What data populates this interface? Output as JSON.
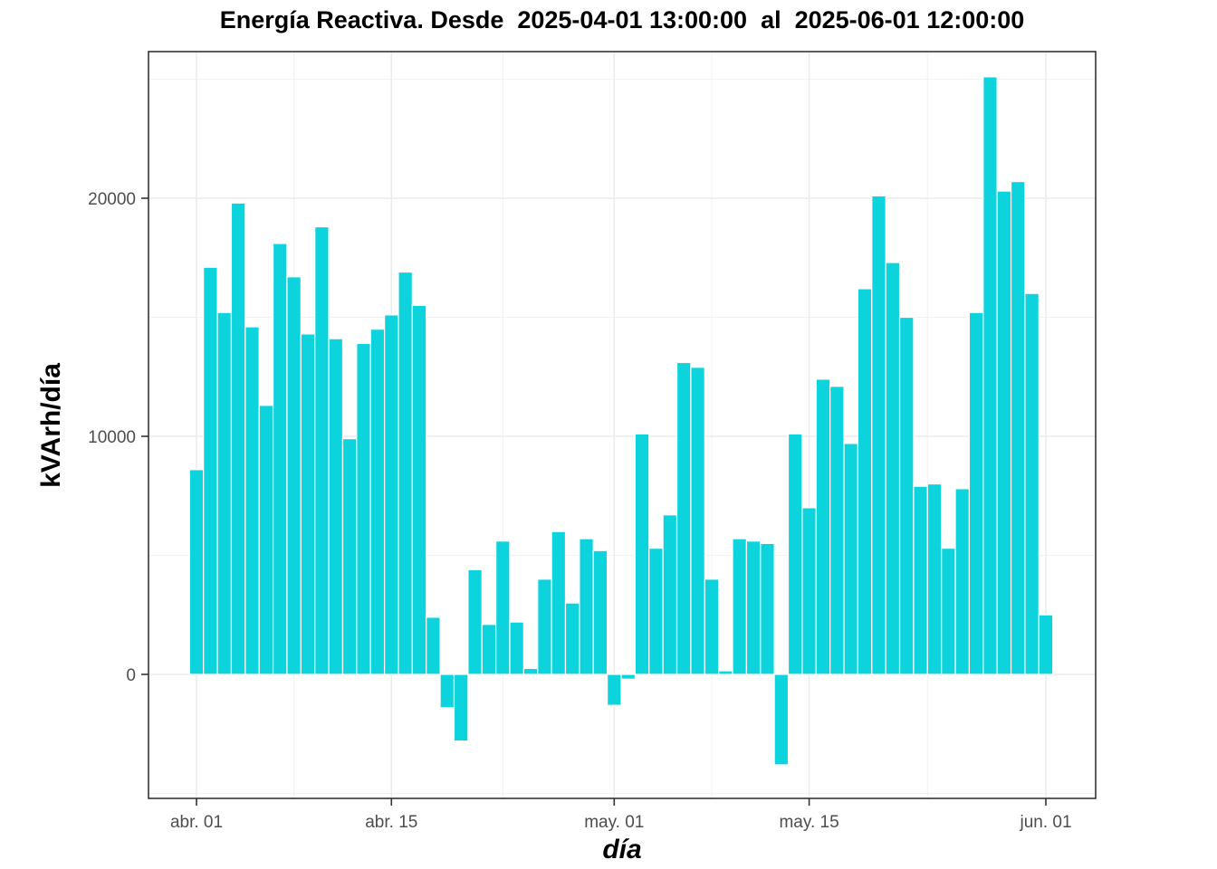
{
  "chart_data": {
    "type": "bar",
    "title": "Energía Reactiva. Desde  2025-04-01 13:00:00  al  2025-06-01 12:00:00",
    "xlabel": "día",
    "ylabel": "kVArh/día",
    "legend": "none",
    "grid": true,
    "colors": {
      "bar_fill": "#0DD3DD",
      "bar_stroke": "#ffffff",
      "grid_major": "#ebebeb",
      "grid_minor": "#f2f2f2",
      "panel_border": "#333333",
      "tick_mark": "#333333",
      "tick_label": "#4d4d4d",
      "background": "#ffffff"
    },
    "y_axis": {
      "ticks": [
        0,
        10000,
        20000
      ],
      "tick_labels": [
        "0",
        "10000",
        "20000"
      ],
      "minor_ticks": [
        -5000,
        5000,
        15000,
        25000
      ],
      "range": [
        -5200,
        26200
      ]
    },
    "x_axis": {
      "ticks": [
        {
          "label": "abr. 01",
          "day_index": 0
        },
        {
          "label": "abr. 15",
          "day_index": 14
        },
        {
          "label": "may. 01",
          "day_index": 30
        },
        {
          "label": "may. 15",
          "day_index": 44
        },
        {
          "label": "jun. 01",
          "day_index": 61
        }
      ]
    },
    "x": [
      "2025-04-01",
      "2025-04-02",
      "2025-04-03",
      "2025-04-04",
      "2025-04-05",
      "2025-04-06",
      "2025-04-07",
      "2025-04-08",
      "2025-04-09",
      "2025-04-10",
      "2025-04-11",
      "2025-04-12",
      "2025-04-13",
      "2025-04-14",
      "2025-04-15",
      "2025-04-16",
      "2025-04-17",
      "2025-04-18",
      "2025-04-19",
      "2025-04-20",
      "2025-04-21",
      "2025-04-22",
      "2025-04-23",
      "2025-04-24",
      "2025-04-25",
      "2025-04-26",
      "2025-04-27",
      "2025-04-28",
      "2025-04-29",
      "2025-04-30",
      "2025-05-01",
      "2025-05-02",
      "2025-05-03",
      "2025-05-04",
      "2025-05-05",
      "2025-05-06",
      "2025-05-07",
      "2025-05-08",
      "2025-05-09",
      "2025-05-10",
      "2025-05-11",
      "2025-05-12",
      "2025-05-13",
      "2025-05-14",
      "2025-05-15",
      "2025-05-16",
      "2025-05-17",
      "2025-05-18",
      "2025-05-19",
      "2025-05-20",
      "2025-05-21",
      "2025-05-22",
      "2025-05-23",
      "2025-05-24",
      "2025-05-25",
      "2025-05-26",
      "2025-05-27",
      "2025-05-28",
      "2025-05-29",
      "2025-05-30",
      "2025-05-31",
      "2025-06-01"
    ],
    "values": [
      8600,
      17100,
      15200,
      19800,
      14600,
      11300,
      18100,
      16700,
      14300,
      18800,
      14100,
      9900,
      13900,
      14500,
      15100,
      16900,
      15500,
      2400,
      -1400,
      -2800,
      4400,
      2100,
      5600,
      2200,
      250,
      4000,
      6000,
      3000,
      5700,
      5200,
      -1300,
      -200,
      10100,
      5300,
      6700,
      13100,
      12900,
      4000,
      150,
      5700,
      5600,
      5500,
      -3800,
      10100,
      7000,
      12400,
      12100,
      9700,
      16200,
      20100,
      17300,
      15000,
      7900,
      8000,
      5300,
      7800,
      15200,
      25100,
      20300,
      20700,
      16000,
      2500
    ]
  }
}
